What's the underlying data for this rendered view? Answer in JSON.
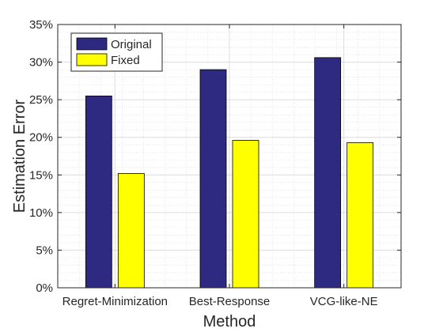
{
  "chart_data": {
    "type": "bar",
    "title": "",
    "xlabel": "Method",
    "ylabel": "Estimation Error",
    "categories": [
      "Regret-Minimization",
      "Best-Response",
      "VCG-like-NE"
    ],
    "series": [
      {
        "name": "Original",
        "color": "#2e2a82",
        "values": [
          25.5,
          29.0,
          30.6
        ]
      },
      {
        "name": "Fixed",
        "color": "#ffff00",
        "values": [
          15.2,
          19.6,
          19.3
        ]
      }
    ],
    "ylim": [
      0,
      35
    ],
    "yticks": [
      0,
      5,
      10,
      15,
      20,
      25,
      30,
      35
    ],
    "ytick_suffix": "%",
    "grid": "major and minor",
    "legend_position": "top-left"
  }
}
